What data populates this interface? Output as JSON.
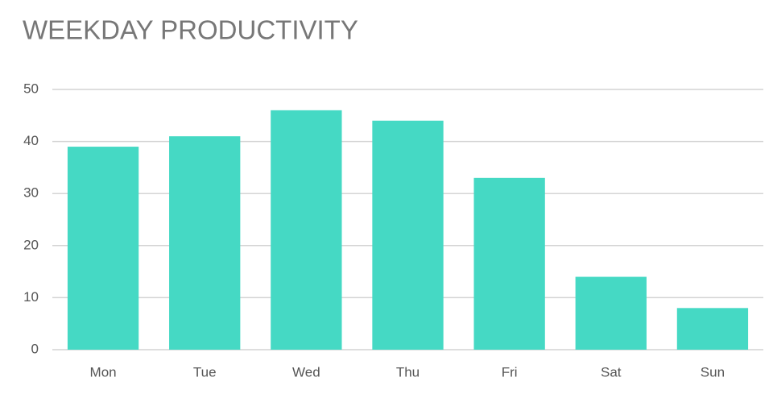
{
  "chart_data": {
    "type": "bar",
    "title": "WEEKDAY PRODUCTIVITY",
    "categories": [
      "Mon",
      "Tue",
      "Wed",
      "Thu",
      "Fri",
      "Sat",
      "Sun"
    ],
    "values": [
      39,
      41,
      46,
      44,
      33,
      14,
      8
    ],
    "color": "#45d9c4",
    "ylim": [
      0,
      50
    ],
    "yticks": [
      0,
      10,
      20,
      30,
      40,
      50
    ],
    "grid": true
  }
}
